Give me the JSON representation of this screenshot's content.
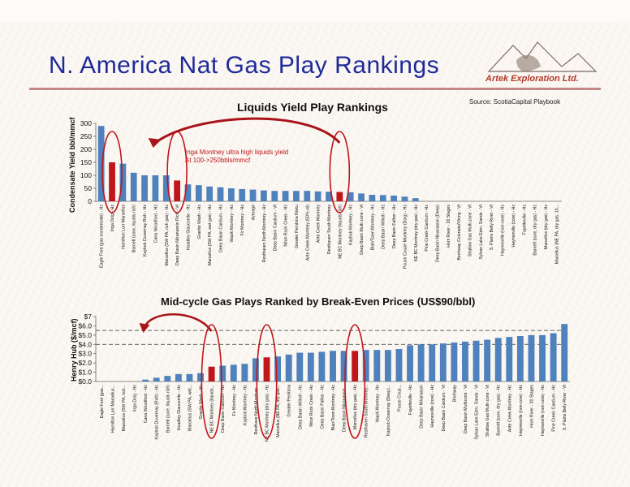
{
  "slide": {
    "title": "N. America Nat Gas Play Rankings",
    "company": "Artek Exploration Ltd.",
    "source": "Source:  ScotiaCapital Playbook"
  },
  "colors": {
    "bar": "#4f81bd",
    "highlight": "#c0151b",
    "ellipse": "#c0151b",
    "title": "#1f2a9a"
  },
  "chart_data": [
    {
      "type": "bar",
      "title": "Liquids Yield Play Rankings",
      "ylabel": "Condensate Yield bbl/mmcf",
      "ylim": [
        0,
        300
      ],
      "yticks": [
        0,
        50,
        100,
        150,
        200,
        250,
        300
      ],
      "annotation": [
        "Inga Montney ultra high liquids yield",
        "At 100->250bbls/mmcf"
      ],
      "highlighted": [
        1,
        7,
        22
      ],
      "categories": [
        "Eagle Ford (gas condensate) - Hz",
        "Inga Doig - Hz",
        "Hamilton Lorr Marcellus",
        "Barnett (core, liquids rich)",
        "Kaybob Duvernay Rich - Hz",
        "Cana Woodford - Hz",
        "Marcellus (SW PA, rich gas) - Hz",
        "Deep Basin Nikanassin Rich - Vt",
        "Hoadley Glauconite - Hz",
        "Granite Wash - Hz",
        "Marcellus (SW PA, wet gas) - Hz",
        "Deep Basin Cardium - Hz",
        "Wapiti Montney - Hz",
        "Fir Montney - Hz",
        "Average",
        "Resthaven North Montney - Hz",
        "Deep Basin Cardium - Vt",
        "Niton Rock Creek - Hz",
        "Greater Pembina Nisku",
        "Ante Creek Montney (50% oil)",
        "Ante Creek Montney",
        "Resthaven South Montney",
        "NE BC Montney (liquids rich)",
        "Kaybob Montney - Hz",
        "Deep Basin Multi-zone - Vt",
        "Blair/Town Montney - Hz",
        "Deep Basin Wilrich - Hz",
        "Deep Basin Falher - Hz",
        "Pouce Coupe Montney (Doig) - Hz",
        "NE BC Montney (dry gas) - Hz",
        "Pine Creek Cardium - Hz",
        "Deep Basin Nikanassin (Deep)",
        "Horn River - 20 Stages",
        "Birchway Colorado/Viking - Vt",
        "Shallow Gas Multi-zone - Vt",
        "Sylvan Lake Edm. Sands - Vt",
        "S. Plains Belly River - Vt",
        "Haynesville (non-core) - Hz",
        "Haynesville (core) - Hz",
        "Fayetteville - Hz",
        "Barnett (core, dry gas) - Hz",
        "Marcellus (dry gas) - Hz",
        "Marcellus (NE PA, dry gas, 10..."
      ],
      "values": [
        290,
        150,
        145,
        110,
        100,
        100,
        100,
        80,
        65,
        62,
        57,
        54,
        50,
        47,
        45,
        42,
        40,
        40,
        40,
        40,
        38,
        37,
        36,
        35,
        30,
        25,
        24,
        22,
        18,
        12,
        0,
        0,
        0,
        0,
        0,
        0,
        0,
        0,
        0,
        0,
        0,
        0,
        0
      ]
    },
    {
      "type": "bar",
      "title": "Mid-cycle Gas Plays Ranked by Break-Even Prices (US$90/bbl)",
      "ylabel": "Henry Hub ($/mcf)",
      "ylim": [
        0,
        7
      ],
      "yticks": [
        "$0.0",
        "$1.0",
        "$2.0",
        "$3.0",
        "$4.0",
        "$5.0",
        "$6.0",
        "$7"
      ],
      "reference_lines": [
        4.0,
        5.5
      ],
      "highlighted": [
        10,
        15,
        23
      ],
      "categories": [
        "Eagle Ford (gas...",
        "Hamilton Lorr Marcellus...",
        "Marcellus (SW PA, rich...",
        "Inga Doig - Hz",
        "Cana Woodford - Hz",
        "Kaybob Duvernay (Rich) - Hz",
        "Barnett (core, liquids rich)",
        "Hoadley Glauconite - Hz",
        "Marcellus (SW PA, wet...",
        "Granite Wash - Hz",
        "NE BC Montney (liquids...",
        "Deep Basin Cardium - Hz",
        "Fir Montney - Hz",
        "Kaybob Montney - Hz",
        "Resthave North Montney...",
        "NE BC Montney (dry gas) - Hz",
        "Marcellus (NE PA, dry gas...",
        "Greater Pembina",
        "Deep Basin Wilrich - Hz",
        "Niton Rock Creek - Hz",
        "Deep Basin Falher - Hz",
        "Blair/Town Montney - Hz",
        "Deep Basin Nikanassin...",
        "Marcellus (dry gas) - Hz",
        "Resthaven South Montney...",
        "Wapiti Montney - Hz",
        "Kaybob Duvernay (Deep)...",
        "Pouce Coup...",
        "Fayetteville - Hz",
        "Deep Basin Nikanassin",
        "Haynesville (core) - Hz",
        "Deep Basin Cardium - Vt",
        "Birchway",
        "Deep Basin Multizone - Vt",
        "Sylvan Lake Edm. Sands - Vt",
        "Shallow Gas Multi-zone - Vt",
        "Barnett (core, dry gas) - Hz",
        "Ante Creek Montney - Hz",
        "Haynesville (non-core) - Hz",
        "Horn River - 20 Stages",
        "Haynesville (non-core) - Hz",
        "Pine Creek Cardium - Hz",
        "S. Plains Belly River - Vt"
      ],
      "values": [
        0,
        0,
        0,
        0,
        0.2,
        0.4,
        0.6,
        0.8,
        0.8,
        0.9,
        1.6,
        1.7,
        1.8,
        1.9,
        2.5,
        2.6,
        2.7,
        2.9,
        3.1,
        3.1,
        3.2,
        3.3,
        3.3,
        3.3,
        3.4,
        3.4,
        3.4,
        3.5,
        3.9,
        4.0,
        4.0,
        4.1,
        4.2,
        4.3,
        4.4,
        4.5,
        4.7,
        4.8,
        4.9,
        5.0,
        5.0,
        5.2,
        6.2
      ]
    }
  ]
}
